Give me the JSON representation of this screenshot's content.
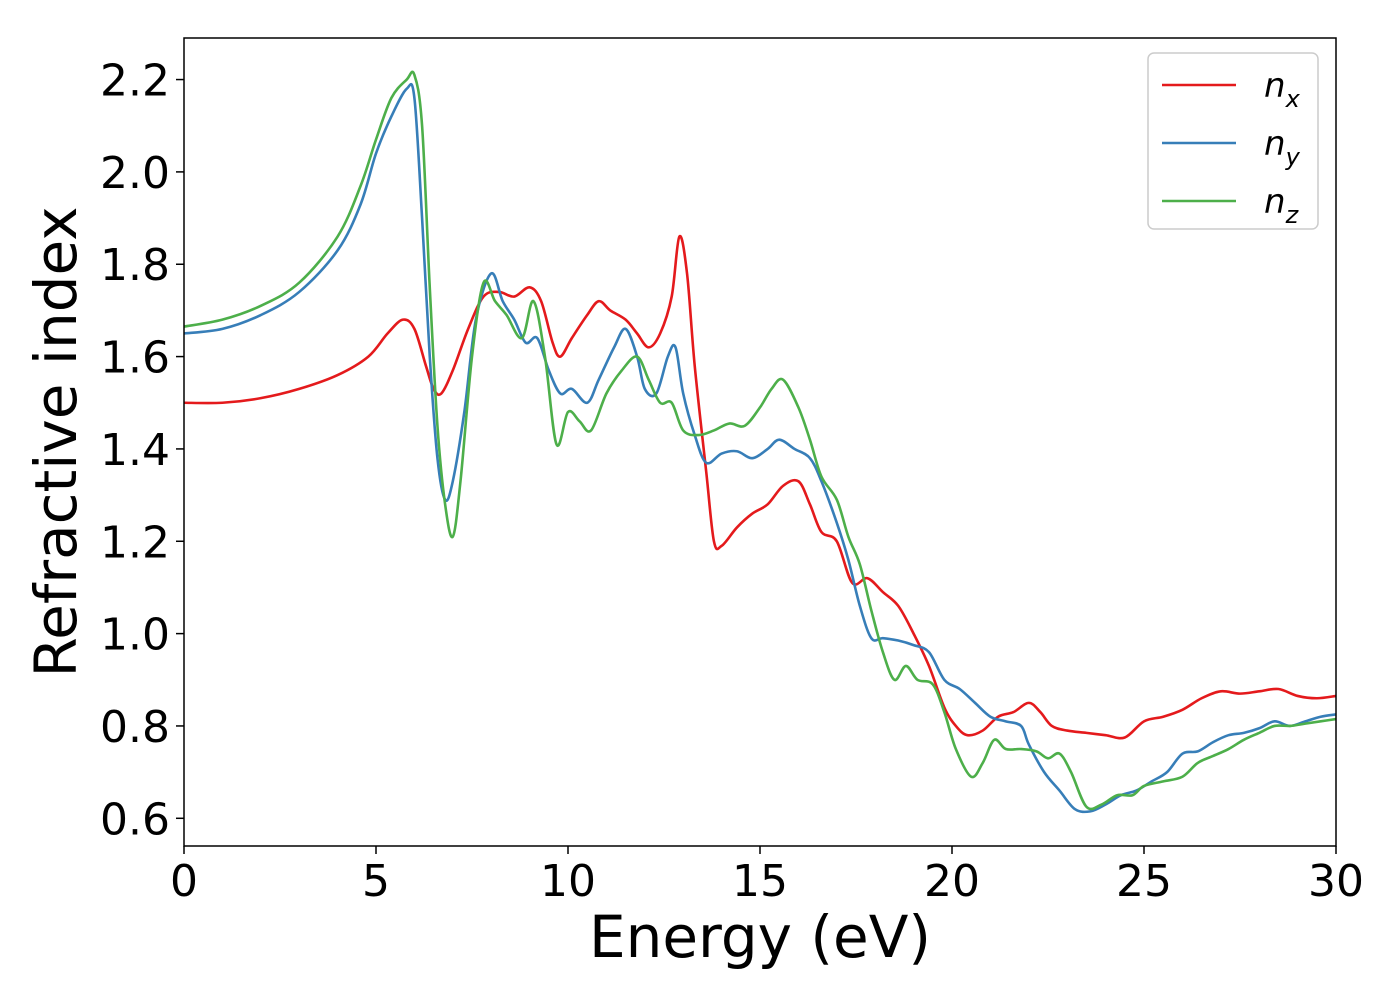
{
  "chart_data": {
    "type": "line",
    "title": "",
    "xlabel": "Energy (eV)",
    "ylabel": "Refractive index",
    "xlim": [
      0,
      30
    ],
    "ylim": [
      0.54,
      2.29
    ],
    "xticks": [
      0,
      5,
      10,
      15,
      20,
      25,
      30
    ],
    "yticks": [
      0.6,
      0.8,
      1.0,
      1.2,
      1.4,
      1.6,
      1.8,
      2.0,
      2.2
    ],
    "grid": false,
    "legend_position": "top-right",
    "series": [
      {
        "name": "n",
        "subscript": "x",
        "color": "#e41a1c",
        "points": [
          [
            0,
            1.5
          ],
          [
            1,
            1.5
          ],
          [
            2,
            1.51
          ],
          [
            3,
            1.53
          ],
          [
            4,
            1.56
          ],
          [
            4.8,
            1.6
          ],
          [
            5.3,
            1.65
          ],
          [
            5.7,
            1.68
          ],
          [
            6.0,
            1.66
          ],
          [
            6.3,
            1.58
          ],
          [
            6.5,
            1.53
          ],
          [
            6.7,
            1.52
          ],
          [
            7.0,
            1.57
          ],
          [
            7.4,
            1.66
          ],
          [
            7.8,
            1.73
          ],
          [
            8.2,
            1.74
          ],
          [
            8.6,
            1.73
          ],
          [
            9.0,
            1.75
          ],
          [
            9.3,
            1.72
          ],
          [
            9.6,
            1.63
          ],
          [
            9.8,
            1.6
          ],
          [
            10.1,
            1.64
          ],
          [
            10.5,
            1.69
          ],
          [
            10.8,
            1.72
          ],
          [
            11.1,
            1.7
          ],
          [
            11.5,
            1.68
          ],
          [
            11.8,
            1.65
          ],
          [
            12.1,
            1.62
          ],
          [
            12.4,
            1.65
          ],
          [
            12.7,
            1.73
          ],
          [
            12.9,
            1.86
          ],
          [
            13.1,
            1.78
          ],
          [
            13.3,
            1.58
          ],
          [
            13.6,
            1.35
          ],
          [
            13.8,
            1.2
          ],
          [
            14.0,
            1.19
          ],
          [
            14.4,
            1.23
          ],
          [
            14.8,
            1.26
          ],
          [
            15.2,
            1.28
          ],
          [
            15.6,
            1.32
          ],
          [
            16.0,
            1.33
          ],
          [
            16.3,
            1.28
          ],
          [
            16.6,
            1.22
          ],
          [
            17.0,
            1.2
          ],
          [
            17.4,
            1.11
          ],
          [
            17.8,
            1.12
          ],
          [
            18.2,
            1.09
          ],
          [
            18.6,
            1.06
          ],
          [
            19.0,
            1.0
          ],
          [
            19.4,
            0.93
          ],
          [
            19.8,
            0.84
          ],
          [
            20.1,
            0.8
          ],
          [
            20.4,
            0.78
          ],
          [
            20.8,
            0.79
          ],
          [
            21.2,
            0.82
          ],
          [
            21.6,
            0.83
          ],
          [
            22.0,
            0.85
          ],
          [
            22.3,
            0.83
          ],
          [
            22.6,
            0.8
          ],
          [
            23.0,
            0.79
          ],
          [
            23.5,
            0.785
          ],
          [
            24.0,
            0.78
          ],
          [
            24.5,
            0.775
          ],
          [
            25.0,
            0.81
          ],
          [
            25.5,
            0.82
          ],
          [
            26.0,
            0.835
          ],
          [
            26.5,
            0.86
          ],
          [
            27.0,
            0.875
          ],
          [
            27.5,
            0.87
          ],
          [
            28.0,
            0.875
          ],
          [
            28.5,
            0.88
          ],
          [
            29.0,
            0.865
          ],
          [
            29.5,
            0.86
          ],
          [
            30.0,
            0.865
          ]
        ]
      },
      {
        "name": "n",
        "subscript": "y",
        "color": "#377eb8",
        "points": [
          [
            0,
            1.65
          ],
          [
            1,
            1.66
          ],
          [
            2,
            1.69
          ],
          [
            3,
            1.74
          ],
          [
            4,
            1.83
          ],
          [
            4.6,
            1.93
          ],
          [
            5.0,
            2.04
          ],
          [
            5.4,
            2.12
          ],
          [
            5.8,
            2.18
          ],
          [
            6.0,
            2.16
          ],
          [
            6.2,
            1.9
          ],
          [
            6.4,
            1.6
          ],
          [
            6.6,
            1.38
          ],
          [
            6.8,
            1.29
          ],
          [
            7.0,
            1.33
          ],
          [
            7.3,
            1.48
          ],
          [
            7.6,
            1.68
          ],
          [
            8.0,
            1.78
          ],
          [
            8.3,
            1.72
          ],
          [
            8.6,
            1.68
          ],
          [
            8.9,
            1.63
          ],
          [
            9.2,
            1.64
          ],
          [
            9.5,
            1.57
          ],
          [
            9.8,
            1.52
          ],
          [
            10.1,
            1.53
          ],
          [
            10.5,
            1.5
          ],
          [
            10.8,
            1.55
          ],
          [
            11.2,
            1.62
          ],
          [
            11.5,
            1.66
          ],
          [
            11.8,
            1.6
          ],
          [
            12.0,
            1.53
          ],
          [
            12.3,
            1.52
          ],
          [
            12.6,
            1.6
          ],
          [
            12.8,
            1.62
          ],
          [
            13.0,
            1.52
          ],
          [
            13.3,
            1.43
          ],
          [
            13.6,
            1.37
          ],
          [
            14.0,
            1.39
          ],
          [
            14.4,
            1.395
          ],
          [
            14.8,
            1.38
          ],
          [
            15.2,
            1.4
          ],
          [
            15.5,
            1.42
          ],
          [
            15.9,
            1.4
          ],
          [
            16.3,
            1.38
          ],
          [
            16.6,
            1.33
          ],
          [
            17.0,
            1.24
          ],
          [
            17.3,
            1.16
          ],
          [
            17.6,
            1.06
          ],
          [
            17.9,
            0.99
          ],
          [
            18.2,
            0.99
          ],
          [
            18.6,
            0.985
          ],
          [
            19.0,
            0.975
          ],
          [
            19.4,
            0.96
          ],
          [
            19.8,
            0.9
          ],
          [
            20.2,
            0.88
          ],
          [
            20.6,
            0.85
          ],
          [
            21.0,
            0.82
          ],
          [
            21.4,
            0.81
          ],
          [
            21.8,
            0.8
          ],
          [
            22.0,
            0.76
          ],
          [
            22.4,
            0.7
          ],
          [
            22.8,
            0.66
          ],
          [
            23.2,
            0.62
          ],
          [
            23.6,
            0.615
          ],
          [
            24.0,
            0.63
          ],
          [
            24.4,
            0.65
          ],
          [
            24.8,
            0.66
          ],
          [
            25.2,
            0.68
          ],
          [
            25.6,
            0.7
          ],
          [
            26.0,
            0.74
          ],
          [
            26.4,
            0.745
          ],
          [
            26.8,
            0.765
          ],
          [
            27.2,
            0.78
          ],
          [
            27.6,
            0.785
          ],
          [
            28.0,
            0.795
          ],
          [
            28.4,
            0.81
          ],
          [
            28.8,
            0.8
          ],
          [
            29.2,
            0.81
          ],
          [
            29.6,
            0.82
          ],
          [
            30.0,
            0.825
          ]
        ]
      },
      {
        "name": "n",
        "subscript": "z",
        "color": "#4daf4a",
        "points": [
          [
            0,
            1.665
          ],
          [
            1,
            1.68
          ],
          [
            2,
            1.71
          ],
          [
            3,
            1.76
          ],
          [
            4,
            1.86
          ],
          [
            4.6,
            1.97
          ],
          [
            5.0,
            2.07
          ],
          [
            5.4,
            2.16
          ],
          [
            5.8,
            2.2
          ],
          [
            6.0,
            2.21
          ],
          [
            6.2,
            2.1
          ],
          [
            6.4,
            1.75
          ],
          [
            6.6,
            1.45
          ],
          [
            6.8,
            1.28
          ],
          [
            7.0,
            1.21
          ],
          [
            7.2,
            1.33
          ],
          [
            7.5,
            1.6
          ],
          [
            7.8,
            1.76
          ],
          [
            8.1,
            1.72
          ],
          [
            8.4,
            1.69
          ],
          [
            8.8,
            1.64
          ],
          [
            9.1,
            1.72
          ],
          [
            9.4,
            1.6
          ],
          [
            9.7,
            1.41
          ],
          [
            10.0,
            1.48
          ],
          [
            10.3,
            1.46
          ],
          [
            10.6,
            1.44
          ],
          [
            11.0,
            1.52
          ],
          [
            11.4,
            1.57
          ],
          [
            11.8,
            1.6
          ],
          [
            12.1,
            1.55
          ],
          [
            12.4,
            1.5
          ],
          [
            12.7,
            1.5
          ],
          [
            13.0,
            1.44
          ],
          [
            13.4,
            1.43
          ],
          [
            13.8,
            1.44
          ],
          [
            14.2,
            1.455
          ],
          [
            14.6,
            1.45
          ],
          [
            15.0,
            1.49
          ],
          [
            15.3,
            1.53
          ],
          [
            15.6,
            1.55
          ],
          [
            16.0,
            1.49
          ],
          [
            16.3,
            1.42
          ],
          [
            16.6,
            1.34
          ],
          [
            17.0,
            1.29
          ],
          [
            17.3,
            1.21
          ],
          [
            17.6,
            1.15
          ],
          [
            17.9,
            1.05
          ],
          [
            18.2,
            0.96
          ],
          [
            18.5,
            0.9
          ],
          [
            18.8,
            0.93
          ],
          [
            19.1,
            0.9
          ],
          [
            19.5,
            0.89
          ],
          [
            19.8,
            0.83
          ],
          [
            20.1,
            0.75
          ],
          [
            20.5,
            0.69
          ],
          [
            20.8,
            0.72
          ],
          [
            21.1,
            0.77
          ],
          [
            21.4,
            0.75
          ],
          [
            21.8,
            0.75
          ],
          [
            22.2,
            0.745
          ],
          [
            22.5,
            0.73
          ],
          [
            22.8,
            0.74
          ],
          [
            23.1,
            0.7
          ],
          [
            23.5,
            0.625
          ],
          [
            23.9,
            0.63
          ],
          [
            24.3,
            0.65
          ],
          [
            24.7,
            0.65
          ],
          [
            25.0,
            0.67
          ],
          [
            25.5,
            0.68
          ],
          [
            26.0,
            0.69
          ],
          [
            26.4,
            0.72
          ],
          [
            26.8,
            0.735
          ],
          [
            27.2,
            0.75
          ],
          [
            27.6,
            0.77
          ],
          [
            28.0,
            0.785
          ],
          [
            28.4,
            0.8
          ],
          [
            28.8,
            0.8
          ],
          [
            29.2,
            0.805
          ],
          [
            29.6,
            0.81
          ],
          [
            30.0,
            0.815
          ]
        ]
      }
    ]
  }
}
